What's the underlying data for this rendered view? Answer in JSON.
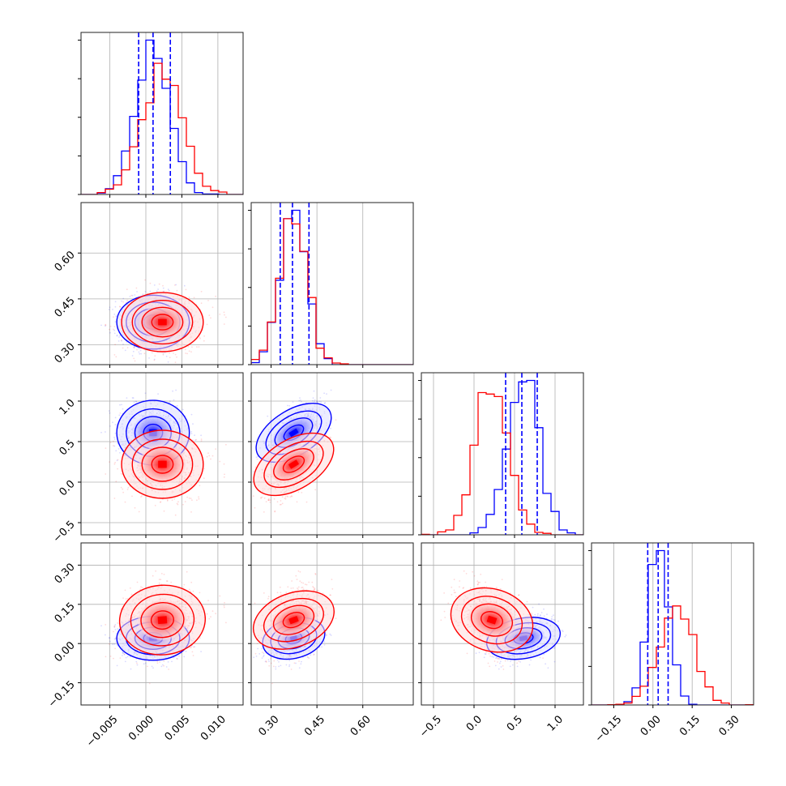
{
  "chart_data": {
    "type": "corner",
    "grid": true,
    "parameters": [
      "",
      "",
      "",
      ""
    ],
    "ranges": [
      [
        -0.009,
        0.0135
      ],
      [
        0.235,
        0.765
      ],
      [
        -0.65,
        1.35
      ],
      [
        -0.235,
        0.385
      ]
    ],
    "ticks": [
      {
        "values": [
          -0.005,
          0.0,
          0.005,
          0.01
        ],
        "labels": [
          "−0.005",
          "0.000",
          "0.005",
          "0.010"
        ]
      },
      {
        "values": [
          0.3,
          0.45,
          0.6
        ],
        "labels": [
          "0.30",
          "0.45",
          "0.60"
        ]
      },
      {
        "values": [
          -0.5,
          0.0,
          0.5,
          1.0
        ],
        "labels": [
          "−0.5",
          "0.0",
          "0.5",
          "1.0"
        ]
      },
      {
        "values": [
          -0.15,
          0.0,
          0.15,
          0.3
        ],
        "labels": [
          "−0.15",
          "0.00",
          "0.15",
          "0.30"
        ]
      }
    ],
    "colors": {
      "blue": "#0000ff",
      "red": "#ff0000",
      "quantile_line": "#0000ff"
    },
    "series": [
      {
        "color": "#0000ff",
        "mean": [
          0.001,
          0.374,
          0.61,
          0.02
        ],
        "std": [
          0.0024,
          0.042,
          0.19,
          0.04
        ],
        "corr": [
          [
            1,
            0,
            0,
            0
          ],
          [
            0,
            1,
            0.6,
            0.35
          ],
          [
            0,
            0.6,
            1,
            0.3
          ],
          [
            0,
            0.35,
            0.3,
            1
          ]
        ]
      },
      {
        "color": "#ff0000",
        "mean": [
          0.0023,
          0.374,
          0.22,
          0.09
        ],
        "std": [
          0.0027,
          0.046,
          0.2,
          0.065
        ],
        "corr": [
          [
            1,
            0,
            0,
            0.1
          ],
          [
            0,
            1,
            0.6,
            0.35
          ],
          [
            0,
            0.6,
            1,
            -0.35
          ],
          [
            0.1,
            0.35,
            -0.35,
            1
          ]
        ]
      }
    ],
    "quantiles": [
      [
        -0.001,
        0.001,
        0.0034
      ],
      [
        0.33,
        0.37,
        0.424
      ],
      [
        0.39,
        0.59,
        0.78
      ],
      [
        -0.02,
        0.02,
        0.058
      ]
    ]
  }
}
